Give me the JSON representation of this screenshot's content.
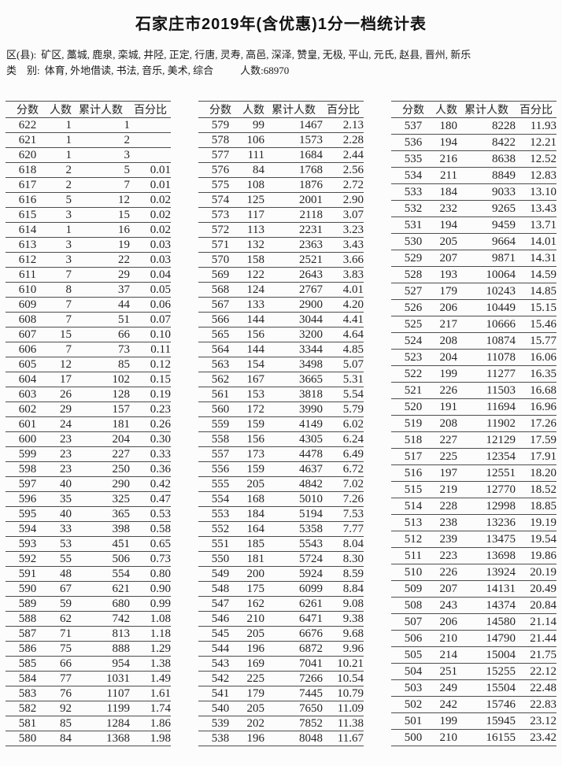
{
  "title": "石家庄市2019年(含优惠)1分一档统计表",
  "meta": {
    "region_label": "区(县):",
    "region_list": "矿区, 藁城, 鹿泉, 栾城, 井陉, 正定, 行唐, 灵寿, 高邑, 深泽, 赞皇, 无极, 平山, 元氏, 赵县, 晋州, 新乐",
    "category_label": "类　别:",
    "category_list": "体育, 外地借读, 书法, 音乐, 美术, 综合",
    "total_count": "人数:68970"
  },
  "columns": [
    "分数",
    "人数",
    "累计人数",
    "百分比"
  ],
  "tables": [
    {
      "id": "left",
      "rows": [
        [
          622,
          1,
          1,
          ""
        ],
        [
          621,
          1,
          2,
          ""
        ],
        [
          620,
          1,
          3,
          ""
        ],
        [
          618,
          2,
          5,
          "0.01"
        ],
        [
          617,
          2,
          7,
          "0.01"
        ],
        [
          616,
          5,
          12,
          "0.02"
        ],
        [
          615,
          3,
          15,
          "0.02"
        ],
        [
          614,
          1,
          16,
          "0.02"
        ],
        [
          613,
          3,
          19,
          "0.03"
        ],
        [
          612,
          3,
          22,
          "0.03"
        ],
        [
          611,
          7,
          29,
          "0.04"
        ],
        [
          610,
          8,
          37,
          "0.05"
        ],
        [
          609,
          7,
          44,
          "0.06"
        ],
        [
          608,
          7,
          51,
          "0.07"
        ],
        [
          607,
          15,
          66,
          "0.10"
        ],
        [
          606,
          7,
          73,
          "0.11"
        ],
        [
          605,
          12,
          85,
          "0.12"
        ],
        [
          604,
          17,
          102,
          "0.15"
        ],
        [
          603,
          26,
          128,
          "0.19"
        ],
        [
          602,
          29,
          157,
          "0.23"
        ],
        [
          601,
          24,
          181,
          "0.26"
        ],
        [
          600,
          23,
          204,
          "0.30"
        ],
        [
          599,
          23,
          227,
          "0.33"
        ],
        [
          598,
          23,
          250,
          "0.36"
        ],
        [
          597,
          40,
          290,
          "0.42"
        ],
        [
          596,
          35,
          325,
          "0.47"
        ],
        [
          595,
          40,
          365,
          "0.53"
        ],
        [
          594,
          33,
          398,
          "0.58"
        ],
        [
          593,
          53,
          451,
          "0.65"
        ],
        [
          592,
          55,
          506,
          "0.73"
        ],
        [
          591,
          48,
          554,
          "0.80"
        ],
        [
          590,
          67,
          621,
          "0.90"
        ],
        [
          589,
          59,
          680,
          "0.99"
        ],
        [
          588,
          62,
          742,
          "1.08"
        ],
        [
          587,
          71,
          813,
          "1.18"
        ],
        [
          586,
          75,
          888,
          "1.29"
        ],
        [
          585,
          66,
          954,
          "1.38"
        ],
        [
          584,
          77,
          1031,
          "1.49"
        ],
        [
          583,
          76,
          1107,
          "1.61"
        ],
        [
          582,
          92,
          1199,
          "1.74"
        ],
        [
          581,
          85,
          1284,
          "1.86"
        ],
        [
          580,
          84,
          1368,
          "1.98"
        ]
      ]
    },
    {
      "id": "middle",
      "rows": [
        [
          579,
          99,
          1467,
          "2.13"
        ],
        [
          578,
          106,
          1573,
          "2.28"
        ],
        [
          577,
          111,
          1684,
          "2.44"
        ],
        [
          576,
          84,
          1768,
          "2.56"
        ],
        [
          575,
          108,
          1876,
          "2.72"
        ],
        [
          574,
          125,
          2001,
          "2.90"
        ],
        [
          573,
          117,
          2118,
          "3.07"
        ],
        [
          572,
          113,
          2231,
          "3.23"
        ],
        [
          571,
          132,
          2363,
          "3.43"
        ],
        [
          570,
          158,
          2521,
          "3.66"
        ],
        [
          569,
          122,
          2643,
          "3.83"
        ],
        [
          568,
          124,
          2767,
          "4.01"
        ],
        [
          567,
          133,
          2900,
          "4.20"
        ],
        [
          566,
          144,
          3044,
          "4.41"
        ],
        [
          565,
          156,
          3200,
          "4.64"
        ],
        [
          564,
          144,
          3344,
          "4.85"
        ],
        [
          563,
          154,
          3498,
          "5.07"
        ],
        [
          562,
          167,
          3665,
          "5.31"
        ],
        [
          561,
          153,
          3818,
          "5.54"
        ],
        [
          560,
          172,
          3990,
          "5.79"
        ],
        [
          559,
          159,
          4149,
          "6.02"
        ],
        [
          558,
          156,
          4305,
          "6.24"
        ],
        [
          557,
          173,
          4478,
          "6.49"
        ],
        [
          556,
          159,
          4637,
          "6.72"
        ],
        [
          555,
          205,
          4842,
          "7.02"
        ],
        [
          554,
          168,
          5010,
          "7.26"
        ],
        [
          553,
          184,
          5194,
          "7.53"
        ],
        [
          552,
          164,
          5358,
          "7.77"
        ],
        [
          551,
          185,
          5543,
          "8.04"
        ],
        [
          550,
          181,
          5724,
          "8.30"
        ],
        [
          549,
          200,
          5924,
          "8.59"
        ],
        [
          548,
          175,
          6099,
          "8.84"
        ],
        [
          547,
          162,
          6261,
          "9.08"
        ],
        [
          546,
          210,
          6471,
          "9.38"
        ],
        [
          545,
          205,
          6676,
          "9.68"
        ],
        [
          544,
          196,
          6872,
          "9.96"
        ],
        [
          543,
          169,
          7041,
          "10.21"
        ],
        [
          542,
          225,
          7266,
          "10.54"
        ],
        [
          541,
          179,
          7445,
          "10.79"
        ],
        [
          540,
          205,
          7650,
          "11.09"
        ],
        [
          539,
          202,
          7852,
          "11.38"
        ],
        [
          538,
          196,
          8048,
          "11.67"
        ]
      ]
    },
    {
      "id": "right",
      "rows": [
        [
          537,
          180,
          8228,
          "11.93"
        ],
        [
          536,
          194,
          8422,
          "12.21"
        ],
        [
          535,
          216,
          8638,
          "12.52"
        ],
        [
          534,
          211,
          8849,
          "12.83"
        ],
        [
          533,
          184,
          9033,
          "13.10"
        ],
        [
          532,
          232,
          9265,
          "13.43"
        ],
        [
          531,
          194,
          9459,
          "13.71"
        ],
        [
          530,
          205,
          9664,
          "14.01"
        ],
        [
          529,
          207,
          9871,
          "14.31"
        ],
        [
          528,
          193,
          10064,
          "14.59"
        ],
        [
          527,
          179,
          10243,
          "14.85"
        ],
        [
          526,
          206,
          10449,
          "15.15"
        ],
        [
          525,
          217,
          10666,
          "15.46"
        ],
        [
          524,
          208,
          10874,
          "15.77"
        ],
        [
          523,
          204,
          11078,
          "16.06"
        ],
        [
          522,
          199,
          11277,
          "16.35"
        ],
        [
          521,
          226,
          11503,
          "16.68"
        ],
        [
          520,
          191,
          11694,
          "16.96"
        ],
        [
          519,
          208,
          11902,
          "17.26"
        ],
        [
          518,
          227,
          12129,
          "17.59"
        ],
        [
          517,
          225,
          12354,
          "17.91"
        ],
        [
          516,
          197,
          12551,
          "18.20"
        ],
        [
          515,
          219,
          12770,
          "18.52"
        ],
        [
          514,
          228,
          12998,
          "18.85"
        ],
        [
          513,
          238,
          13236,
          "19.19"
        ],
        [
          512,
          239,
          13475,
          "19.54"
        ],
        [
          511,
          223,
          13698,
          "19.86"
        ],
        [
          510,
          226,
          13924,
          "20.19"
        ],
        [
          509,
          207,
          14131,
          "20.49"
        ],
        [
          508,
          243,
          14374,
          "20.84"
        ],
        [
          507,
          206,
          14580,
          "21.14"
        ],
        [
          506,
          210,
          14790,
          "21.44"
        ],
        [
          505,
          214,
          15004,
          "21.75"
        ],
        [
          504,
          251,
          15255,
          "22.12"
        ],
        [
          503,
          249,
          15504,
          "22.48"
        ],
        [
          502,
          242,
          15746,
          "22.83"
        ],
        [
          501,
          199,
          15945,
          "23.12"
        ],
        [
          500,
          210,
          16155,
          "23.42"
        ]
      ]
    }
  ]
}
